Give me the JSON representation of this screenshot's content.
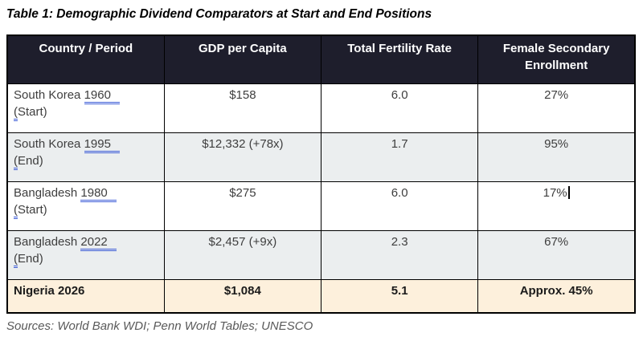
{
  "title": "Table 1: Demographic Dividend Comparators at Start and End Positions",
  "sources": "Sources: World Bank WDI; Penn World Tables; UNESCO",
  "colors": {
    "header_bg": "#1e1e2c",
    "header_text": "#ffffff",
    "alt_row_bg": "#ebeeef",
    "highlight_row_bg": "#fdf0dc",
    "grammar_underline": "#3d5cd7",
    "body_text": "#3e3e3e",
    "sources_text": "#595959",
    "border": "#000000"
  },
  "table": {
    "columns": [
      "Country / Period",
      "GDP per Capita",
      "Total Fertility Rate",
      "Female Secondary Enrollment"
    ],
    "rows": [
      {
        "country": "South Korea ",
        "year": "1960",
        "phase_open": "(",
        "phase_rest": "Start)",
        "gdp": "$158",
        "fertility": "6.0",
        "enrollment": "27%"
      },
      {
        "country": "South Korea ",
        "year": "1995",
        "phase_open": "(",
        "phase_rest": "End)",
        "gdp": "$12,332 (+78x)",
        "fertility": "1.7",
        "enrollment": "95%"
      },
      {
        "country": "Bangladesh ",
        "year": "1980",
        "phase_open": "(",
        "phase_rest": "Start)",
        "gdp": "$275",
        "fertility": "6.0",
        "enrollment": "17%"
      },
      {
        "country": "Bangladesh ",
        "year": "2022",
        "phase_open": "(",
        "phase_rest": "End)",
        "gdp": "$2,457 (+9x)",
        "fertility": "2.3",
        "enrollment": "67%"
      }
    ],
    "highlight_row": {
      "label": "Nigeria 2026",
      "gdp": "$1,084",
      "fertility": "5.1",
      "enrollment": "Approx. 45%"
    }
  }
}
